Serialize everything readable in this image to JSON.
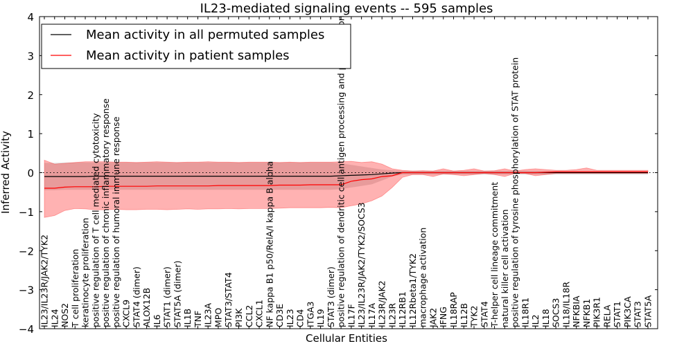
{
  "chart_data": {
    "type": "line",
    "title": "IL23-mediated signaling events -- 595 samples",
    "xlabel": "Cellular Entities",
    "ylabel": "Inferred Activity",
    "ylim": [
      -4,
      4
    ],
    "yticks": [
      -4,
      -3,
      -2,
      -1,
      0,
      1,
      2,
      3,
      4
    ],
    "ytick_labels": [
      "−4",
      "−3",
      "−2",
      "−1",
      "0",
      "1",
      "2",
      "3",
      "4"
    ],
    "zero_line": "dotted",
    "legend": {
      "placement": "top-left",
      "entries": [
        {
          "label": "Mean activity in all permuted samples",
          "color": "#000000"
        },
        {
          "label": "Mean activity in patient samples",
          "color": "#ff0000"
        }
      ]
    },
    "categories": [
      "IL23/IL23R/JAK2/TYK2",
      "IL24",
      "NOS2",
      "T cell proliferation",
      "keratinocyte proliferation",
      "positive regulation of T cell mediated cytotoxicity",
      "positive regulation of chronic inflammatory response",
      "positive regulation of humoral immune response",
      "CXCL9",
      "STAT4 (dimer)",
      "ALOX12B",
      "IL6",
      "STAT1 (dimer)",
      "STAT5A (dimer)",
      "IL1B",
      "TNF",
      "IL23A",
      "MPO",
      "STAT3/STAT4",
      "PI3K",
      "CCL2",
      "CXCL1",
      "NF kappa B1 p50/RelA/I kappa B alpha",
      "CD3E",
      "IL23",
      "CD4",
      "ITGA3",
      "IL19",
      "STAT3 (dimer)",
      "positive regulation of dendritic cell antigen processing and presentation",
      "IL17F",
      "IL23/IL23R/JAK2/TYK2/SOCS3",
      "IL17A",
      "IL23R/JAK2",
      "IL23R",
      "IL12RB1",
      "IL12Rbeta1/TYK2",
      "macrophage activation",
      "JAK2",
      "IFNG",
      "IL18RAP",
      "IL12B",
      "TYK2",
      "STAT4",
      "T-helper cell lineage commitment",
      "natural killer cell activation",
      "positive regulation of tyrosine phosphorylation of STAT protein",
      "IL18R1",
      "IL2",
      "IL18",
      "SOCS3",
      "IL18/IL18R",
      "NFKBIA",
      "NFKB1",
      "PIK3R1",
      "RELA",
      "STAT1",
      "PIK3CA",
      "STAT3",
      "STAT5A"
    ],
    "series": [
      {
        "name": "Mean activity in all permuted samples",
        "color": "#000000",
        "values": [
          -0.1,
          -0.1,
          -0.1,
          -0.1,
          -0.1,
          -0.09,
          -0.09,
          -0.09,
          -0.09,
          -0.09,
          -0.09,
          -0.09,
          -0.09,
          -0.09,
          -0.09,
          -0.09,
          -0.09,
          -0.09,
          -0.09,
          -0.09,
          -0.09,
          -0.09,
          -0.09,
          -0.09,
          -0.09,
          -0.09,
          -0.09,
          -0.09,
          -0.09,
          -0.08,
          -0.07,
          -0.06,
          -0.05,
          -0.03,
          -0.01,
          0.0,
          0.0,
          0.0,
          0.0,
          0.0,
          0.0,
          0.0,
          0.0,
          0.0,
          0.0,
          0.0,
          0.0,
          0.0,
          0.0,
          0.0,
          0.0,
          0.0,
          0.0,
          0.0,
          0.0,
          0.0,
          0.0,
          0.0,
          0.0,
          0.0
        ],
        "lower": [
          -0.45,
          -0.45,
          -0.44,
          -0.44,
          -0.44,
          -0.44,
          -0.44,
          -0.44,
          -0.44,
          -0.44,
          -0.44,
          -0.44,
          -0.44,
          -0.44,
          -0.44,
          -0.44,
          -0.44,
          -0.44,
          -0.44,
          -0.44,
          -0.44,
          -0.44,
          -0.44,
          -0.44,
          -0.44,
          -0.44,
          -0.44,
          -0.44,
          -0.44,
          -0.42,
          -0.38,
          -0.34,
          -0.3,
          -0.2,
          -0.1,
          -0.05,
          -0.05,
          -0.05,
          -0.05,
          -0.05,
          -0.05,
          -0.05,
          -0.05,
          -0.05,
          -0.05,
          -0.05,
          -0.05,
          -0.05,
          -0.05,
          -0.05,
          -0.05,
          -0.05,
          -0.05,
          -0.05,
          -0.05,
          -0.05,
          -0.05,
          -0.05,
          -0.05,
          -0.05
        ],
        "upper": [
          0.25,
          0.25,
          0.26,
          0.26,
          0.26,
          0.26,
          0.26,
          0.26,
          0.26,
          0.26,
          0.26,
          0.26,
          0.26,
          0.26,
          0.26,
          0.26,
          0.26,
          0.26,
          0.26,
          0.26,
          0.26,
          0.26,
          0.26,
          0.26,
          0.26,
          0.26,
          0.26,
          0.26,
          0.26,
          0.24,
          0.2,
          0.16,
          0.12,
          0.08,
          0.06,
          0.05,
          0.05,
          0.05,
          0.05,
          0.05,
          0.05,
          0.05,
          0.05,
          0.05,
          0.05,
          0.05,
          0.05,
          0.05,
          0.05,
          0.05,
          0.05,
          0.05,
          0.05,
          0.05,
          0.05,
          0.05,
          0.05,
          0.05,
          0.05,
          0.05
        ]
      },
      {
        "name": "Mean activity in patient samples",
        "color": "#ff0000",
        "values": [
          -0.4,
          -0.4,
          -0.37,
          -0.36,
          -0.36,
          -0.36,
          -0.35,
          -0.35,
          -0.35,
          -0.35,
          -0.35,
          -0.34,
          -0.34,
          -0.34,
          -0.34,
          -0.34,
          -0.34,
          -0.33,
          -0.33,
          -0.33,
          -0.33,
          -0.33,
          -0.33,
          -0.32,
          -0.32,
          -0.32,
          -0.31,
          -0.31,
          -0.31,
          -0.31,
          -0.22,
          -0.18,
          -0.16,
          -0.1,
          -0.08,
          0.0,
          0.0,
          0.0,
          0.0,
          0.0,
          0.0,
          0.0,
          0.0,
          0.0,
          0.0,
          0.0,
          0.0,
          0.0,
          0.0,
          0.01,
          0.02,
          0.02,
          0.02,
          0.02,
          0.02,
          0.02,
          0.02,
          0.02,
          0.02,
          0.02
        ],
        "lower": [
          -1.15,
          -1.1,
          -0.97,
          -0.92,
          -0.93,
          -0.95,
          -0.95,
          -0.94,
          -0.95,
          -0.95,
          -0.94,
          -0.94,
          -0.95,
          -0.94,
          -0.93,
          -0.94,
          -0.93,
          -0.93,
          -0.92,
          -0.93,
          -0.92,
          -0.92,
          -0.92,
          -0.91,
          -0.9,
          -0.9,
          -0.9,
          -0.9,
          -0.89,
          -0.9,
          -0.85,
          -0.8,
          -0.72,
          -0.6,
          -0.38,
          -0.12,
          -0.05,
          -0.05,
          -0.1,
          -0.03,
          -0.05,
          -0.08,
          -0.05,
          -0.02,
          -0.05,
          -0.1,
          -0.02,
          -0.02,
          -0.08,
          -0.05,
          -0.02,
          -0.02,
          -0.02,
          -0.02,
          -0.02,
          -0.02,
          -0.02,
          -0.02,
          -0.02,
          -0.02
        ],
        "upper": [
          0.32,
          0.22,
          0.24,
          0.26,
          0.28,
          0.28,
          0.28,
          0.27,
          0.27,
          0.26,
          0.27,
          0.28,
          0.27,
          0.26,
          0.27,
          0.27,
          0.28,
          0.27,
          0.27,
          0.26,
          0.27,
          0.27,
          0.27,
          0.26,
          0.27,
          0.26,
          0.27,
          0.27,
          0.27,
          0.28,
          0.29,
          0.26,
          0.28,
          0.22,
          0.1,
          0.06,
          0.04,
          0.05,
          0.04,
          0.1,
          0.04,
          0.06,
          0.1,
          0.04,
          0.05,
          0.1,
          0.04,
          0.08,
          0.1,
          0.08,
          0.06,
          0.06,
          0.08,
          0.12,
          0.06,
          0.06,
          0.06,
          0.06,
          0.06,
          0.06
        ]
      }
    ]
  }
}
